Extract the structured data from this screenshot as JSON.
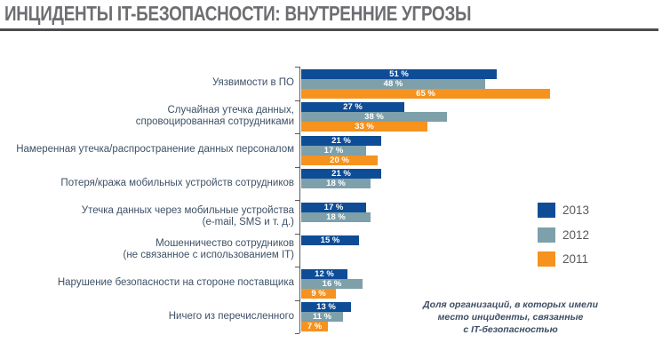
{
  "page": {
    "title": "ИНЦИДЕНТЫ IT-БЕЗОПАСНОСТИ: ВНУТРЕННИЕ УГРОЗЫ"
  },
  "chart_data": {
    "type": "bar",
    "orientation": "horizontal",
    "title": "ИНЦИДЕНТЫ IT-БЕЗОПАСНОСТИ: ВНУТРЕННИЕ УГРОЗЫ",
    "unit": "%",
    "xlim": [
      0,
      65
    ],
    "value_suffix": " %",
    "grid": false,
    "legend_position": "right",
    "categories": [
      "Уязвимости в ПО",
      "Случайная утечка данных,\nспровоцированная сотрудниками",
      "Намеренная утечка/распространение данных персоналом",
      "Потеря/кража мобильных устройств сотрудников",
      "Утечка данных через мобильные устройства\n(e-mail, SMS и т. д.)",
      "Мошенничество сотрудников\n(не связанное с использованием IT)",
      "Нарушение безопасности на стороне поставщика",
      "Ничего из перечисленного"
    ],
    "series": [
      {
        "name": "2013",
        "color": "#0E4C96",
        "values": [
          51,
          27,
          21,
          21,
          17,
          15,
          12,
          13
        ]
      },
      {
        "name": "2012",
        "color": "#7DA0AA",
        "values": [
          48,
          38,
          17,
          18,
          18,
          null,
          16,
          11
        ]
      },
      {
        "name": "2011",
        "color": "#F6921E",
        "values": [
          65,
          33,
          20,
          null,
          null,
          null,
          9,
          7
        ]
      }
    ],
    "footnote": "Доля организаций, в которых имели место инциденты, связанные с IT-безопасностью"
  },
  "legend": {
    "items": [
      {
        "label": "2013",
        "color": "#0E4C96"
      },
      {
        "label": "2012",
        "color": "#7DA0AA"
      },
      {
        "label": "2011",
        "color": "#F6921E"
      }
    ]
  },
  "footnote": {
    "lines": [
      "Доля организаций, в которых имели",
      "место инциденты, связанные",
      "с IT-безопасностью"
    ]
  },
  "colors": {
    "title_text": "#6D6E71",
    "title_rule": "#4D4D4F",
    "axis": "#58595B",
    "category_text": "#3E5166",
    "value_label_text": "#FFFFFF",
    "footnote_text": "#3D4D63"
  }
}
